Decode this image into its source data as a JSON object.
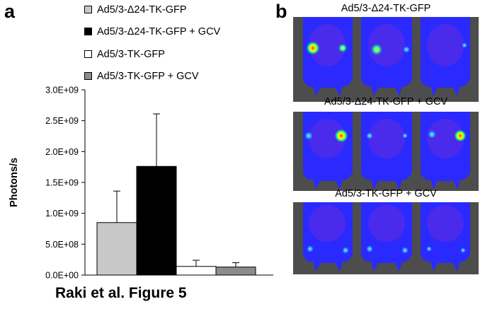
{
  "panel_a_label": "a",
  "panel_b_label": "b",
  "caption": "Raki et al. Figure 5",
  "legend": [
    {
      "label": "Ad5/3-Δ24-TK-GFP",
      "color": "#c8c8c8"
    },
    {
      "label": "Ad5/3-Δ24-TK-GFP + GCV",
      "color": "#000000"
    },
    {
      "label": "Ad5/3-TK-GFP",
      "color": "#ffffff"
    },
    {
      "label": "Ad5/3-TK-GFP + GCV",
      "color": "#8c8c8c"
    }
  ],
  "chart_data": {
    "type": "bar",
    "ylabel": "Photons/s",
    "ylim": [
      0,
      3000000000
    ],
    "yticks": [
      0,
      500000000,
      1000000000,
      1500000000,
      2000000000,
      2500000000,
      3000000000
    ],
    "ytick_labels": [
      "0.0E+00",
      "5.0E+08",
      "1.0E+09",
      "1.5E+09",
      "2.0E+09",
      "2.5E+09",
      "3.0E+09"
    ],
    "grid": false,
    "legend_position": "top",
    "series": [
      {
        "name": "Ad5/3-Δ24-TK-GFP",
        "value": 850000000,
        "error": 510000000,
        "color": "#c8c8c8"
      },
      {
        "name": "Ad5/3-Δ24-TK-GFP + GCV",
        "value": 1760000000,
        "error": 850000000,
        "color": "#000000"
      },
      {
        "name": "Ad5/3-TK-GFP",
        "value": 140000000,
        "error": 100000000,
        "color": "#ffffff"
      },
      {
        "name": "Ad5/3-TK-GFP + GCV",
        "value": 130000000,
        "error": 70000000,
        "color": "#8c8c8c"
      }
    ]
  },
  "images": [
    {
      "title": "Ad5/3-Δ24-TK-GFP"
    },
    {
      "title": "Ad5/3-Δ24-TK-GFP + GCV"
    },
    {
      "title": "Ad5/3-TK-GFP + GCV"
    }
  ]
}
